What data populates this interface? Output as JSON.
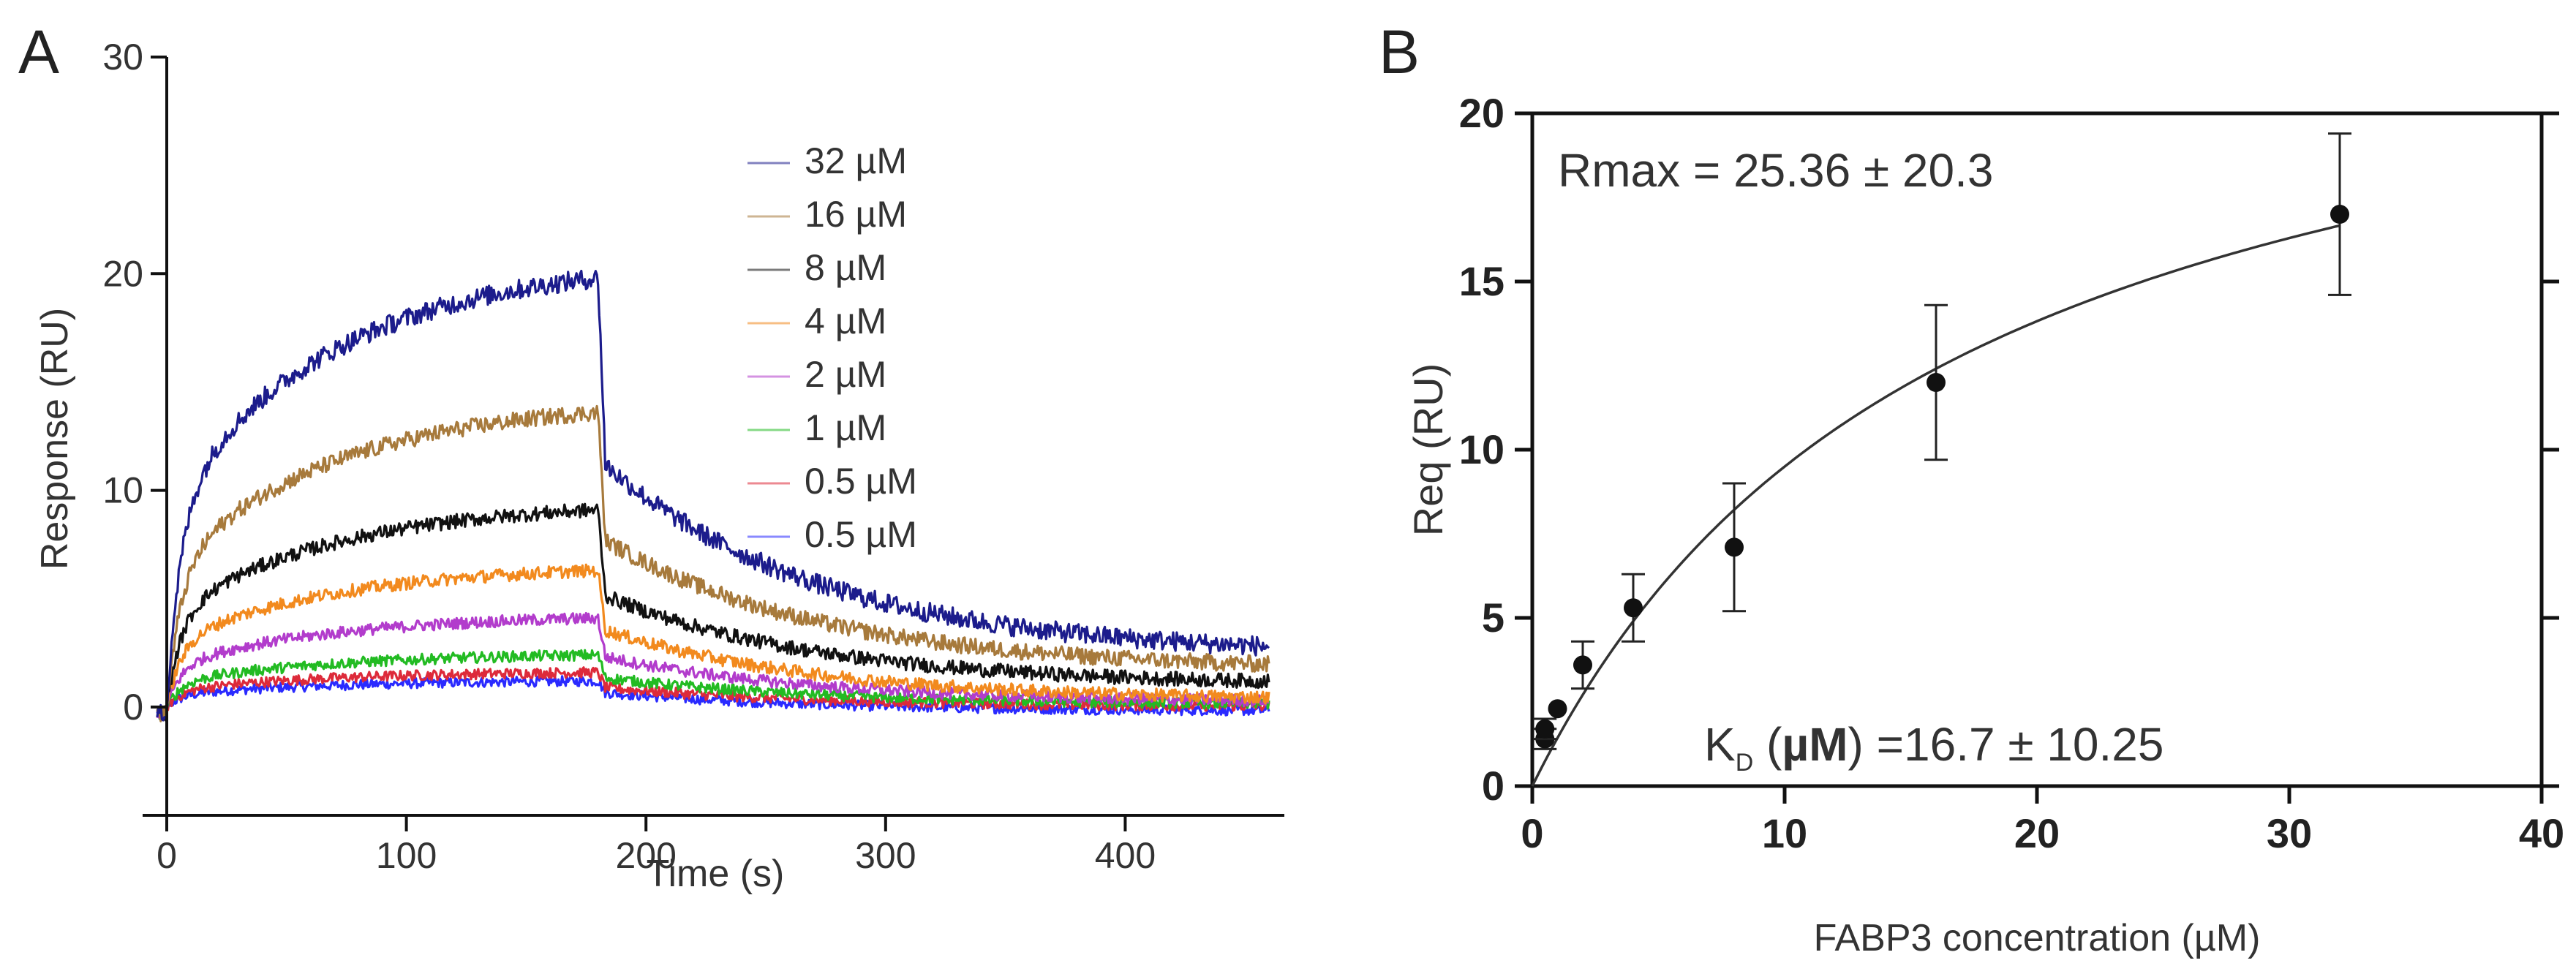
{
  "chart_data": [
    {
      "panel": "A",
      "type": "line",
      "xlabel": "Time (s)",
      "ylabel": "Response (RU)",
      "xlim": [
        -5,
        462
      ],
      "ylim": [
        -5,
        30
      ],
      "xticks": [
        0,
        100,
        200,
        300,
        400
      ],
      "yticks": [
        0,
        10,
        20,
        30
      ],
      "grid": false,
      "legend": "top-right",
      "injection_end_s": 180,
      "series": [
        {
          "name": "32 µM",
          "color": "#1c1c8c",
          "plateau": 19.8,
          "dissoc_end": 2.4
        },
        {
          "name": "16 µM",
          "color": "#a77a3c",
          "plateau": 13.6,
          "dissoc_end": 1.7
        },
        {
          "name": "8 µM",
          "color": "#111111",
          "plateau": 9.1,
          "dissoc_end": 1.0
        },
        {
          "name": "4 µM",
          "color": "#f28a1e",
          "plateau": 6.3,
          "dissoc_end": 0.3
        },
        {
          "name": "2 µM",
          "color": "#b23ccc",
          "plateau": 4.1,
          "dissoc_end": 0.2
        },
        {
          "name": "1 µM",
          "color": "#22bb22",
          "plateau": 2.4,
          "dissoc_end": 0.1
        },
        {
          "name": "0.5 µM",
          "color": "#dd2a3a",
          "plateau": 1.6,
          "dissoc_end": 0.0
        },
        {
          "name": "0.5 µM",
          "color": "#2a2aff",
          "plateau": 1.2,
          "dissoc_end": -0.2
        }
      ]
    },
    {
      "panel": "B",
      "type": "scatter",
      "xlabel": "FABP3 concentration (µM)",
      "ylabel": "Req (RU)",
      "xlim": [
        0,
        40
      ],
      "ylim": [
        0,
        20
      ],
      "xticks": [
        0,
        10,
        20,
        30,
        40
      ],
      "yticks": [
        0,
        5,
        10,
        15,
        20
      ],
      "grid": false,
      "points": [
        {
          "x": 0.5,
          "y": 1.4,
          "err": 0.3
        },
        {
          "x": 0.5,
          "y": 1.7,
          "err": 0.3
        },
        {
          "x": 1,
          "y": 2.3,
          "err": 0.0
        },
        {
          "x": 2,
          "y": 3.6,
          "err": 0.7
        },
        {
          "x": 4,
          "y": 5.3,
          "err": 1.0
        },
        {
          "x": 8,
          "y": 7.1,
          "err": 1.9
        },
        {
          "x": 16,
          "y": 12.0,
          "err": 2.3
        },
        {
          "x": 32,
          "y": 17.0,
          "err": 2.4
        }
      ],
      "fit": {
        "model": "one-site binding",
        "Rmax": 25.36,
        "KD": 16.7,
        "x_end": 32
      },
      "annotations": {
        "rmax": "Rmax = 25.36 ± 20.3",
        "kd_K": "K",
        "kd_sub": "D",
        "kd_mu": "µM",
        "kd_rest": "=16.7 ± 10.25",
        "kd_open": "(",
        "kd_close": ")"
      }
    }
  ],
  "panel_labels": {
    "a": "A",
    "b": "B"
  }
}
